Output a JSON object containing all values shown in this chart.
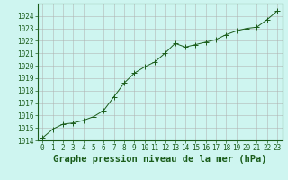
{
  "x": [
    0,
    1,
    2,
    3,
    4,
    5,
    6,
    7,
    8,
    9,
    10,
    11,
    12,
    13,
    14,
    15,
    16,
    17,
    18,
    19,
    20,
    21,
    22,
    23
  ],
  "y": [
    1014.2,
    1014.9,
    1015.3,
    1015.4,
    1015.6,
    1015.9,
    1016.4,
    1017.5,
    1018.6,
    1019.4,
    1019.9,
    1020.3,
    1021.0,
    1021.8,
    1021.5,
    1021.7,
    1021.9,
    1022.1,
    1022.5,
    1022.8,
    1023.0,
    1023.1,
    1023.7,
    1024.4
  ],
  "line_color": "#1a5c1a",
  "marker": "+",
  "marker_size": 4,
  "background_color": "#cef5f0",
  "grid_color": "#b0b0b0",
  "xlim_min": -0.5,
  "xlim_max": 23.5,
  "ylim_min": 1014,
  "ylim_max": 1025,
  "yticks": [
    1014,
    1015,
    1016,
    1017,
    1018,
    1019,
    1020,
    1021,
    1022,
    1023,
    1024
  ],
  "xticks": [
    0,
    1,
    2,
    3,
    4,
    5,
    6,
    7,
    8,
    9,
    10,
    11,
    12,
    13,
    14,
    15,
    16,
    17,
    18,
    19,
    20,
    21,
    22,
    23
  ],
  "xlabel": "Graphe pression niveau de la mer (hPa)",
  "xlabel_fontsize": 7.5,
  "tick_fontsize": 5.5,
  "line_color_dark": "#1a5c1a",
  "linewidth": 0.7,
  "marker_linewidth": 0.7
}
